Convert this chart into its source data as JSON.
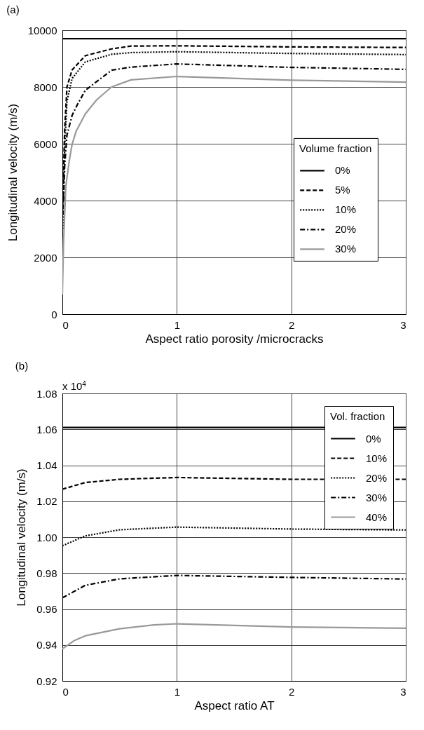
{
  "chart_data": [
    {
      "type": "line",
      "title": "(a)",
      "xlabel": "Aspect ratio porosity /microcracks",
      "ylabel": "Longitudinal velocity (m/s)",
      "legend_title": "Volume fraction",
      "legend": "right",
      "grid": true,
      "xlim": [
        0,
        3
      ],
      "xticks": [
        0,
        1,
        2,
        3
      ],
      "ylim": [
        0,
        10000
      ],
      "yticks": [
        0,
        2000,
        4000,
        6000,
        8000,
        10000
      ],
      "series": [
        {
          "name": "0%",
          "color": "#000000",
          "line_style": "solid",
          "x": [
            0,
            3
          ],
          "values": [
            9700,
            9700
          ]
        },
        {
          "name": "5%",
          "color": "#000000",
          "line_style": "dashed",
          "x": [
            0.005,
            0.01,
            0.02,
            0.04,
            0.085,
            0.2,
            0.43,
            0.6,
            1,
            2,
            3
          ],
          "values": [
            3500,
            5000,
            6500,
            8000,
            8600,
            9100,
            9340,
            9440,
            9450,
            9410,
            9390
          ]
        },
        {
          "name": "10%",
          "color": "#000000",
          "line_style": "dotted",
          "x": [
            0.005,
            0.01,
            0.02,
            0.04,
            0.085,
            0.2,
            0.43,
            0.6,
            1,
            2,
            3
          ],
          "values": [
            3000,
            4500,
            5800,
            7500,
            8300,
            8880,
            9150,
            9210,
            9240,
            9180,
            9140
          ]
        },
        {
          "name": "20%",
          "color": "#000000",
          "line_style": "dashdot",
          "x": [
            0.01,
            0.02,
            0.04,
            0.085,
            0.13,
            0.2,
            0.43,
            0.6,
            1,
            2,
            3
          ],
          "values": [
            4000,
            5200,
            6300,
            7000,
            7370,
            7880,
            8590,
            8700,
            8810,
            8690,
            8620
          ]
        },
        {
          "name": "30%",
          "color": "#999999",
          "line_style": "solid",
          "x": [
            0,
            0.01,
            0.03,
            0.06,
            0.085,
            0.12,
            0.2,
            0.3,
            0.43,
            0.6,
            1,
            2,
            3
          ],
          "values": [
            700,
            2500,
            4500,
            5400,
            5980,
            6440,
            7050,
            7550,
            8000,
            8250,
            8370,
            8240,
            8170
          ]
        }
      ]
    },
    {
      "type": "line",
      "title": "(b)",
      "xlabel": "Aspect ratio AT",
      "ylabel": "Longitudinal velocity (m/s)",
      "legend_title": "Vol. fraction",
      "legend": "top right",
      "grid": true,
      "annotations": [
        "x 10$^{4}$"
      ],
      "xlim": [
        0,
        3
      ],
      "xticks": [
        0,
        1,
        2,
        3
      ],
      "ylim": [
        0.92,
        1.08
      ],
      "yticks": [
        {
          "value": 0.92,
          "label": "0.92"
        },
        {
          "value": 0.94,
          "label": "0.94"
        },
        {
          "value": 0.96,
          "label": "0.96"
        },
        {
          "value": 0.98,
          "label": "0.98"
        },
        {
          "value": 1,
          "label": "1.00"
        },
        {
          "value": 1.02,
          "label": "1.02"
        },
        {
          "value": 1.04,
          "label": "1.04"
        },
        {
          "value": 1.06,
          "label": "1.06"
        },
        {
          "value": 1.08,
          "label": "1.08"
        }
      ],
      "series": [
        {
          "name": "0%",
          "color": "#000000",
          "line_style": "solid",
          "x": [
            0,
            3
          ],
          "values": [
            1.061,
            1.061
          ]
        },
        {
          "name": "10%",
          "color": "#000000",
          "line_style": "dashed",
          "x": [
            0,
            0.2,
            0.5,
            1,
            2,
            3
          ],
          "values": [
            1.0267,
            1.0304,
            1.0322,
            1.0332,
            1.0322,
            1.0322
          ]
        },
        {
          "name": "20%",
          "color": "#000000",
          "line_style": "dotted",
          "x": [
            0,
            0.2,
            0.5,
            1,
            2,
            3
          ],
          "values": [
            0.9952,
            1.0007,
            1.0041,
            1.0056,
            1.0045,
            1.004
          ]
        },
        {
          "name": "30%",
          "color": "#000000",
          "line_style": "dashdot",
          "x": [
            0,
            0.2,
            0.5,
            1,
            2,
            3
          ],
          "values": [
            0.9662,
            0.9732,
            0.9768,
            0.9787,
            0.9776,
            0.9767
          ]
        },
        {
          "name": "40%",
          "color": "#999999",
          "line_style": "solid",
          "x": [
            0,
            0.1,
            0.2,
            0.5,
            0.8,
            1,
            2,
            3
          ],
          "values": [
            0.9378,
            0.9423,
            0.9451,
            0.949,
            0.9512,
            0.9518,
            0.95,
            0.9493
          ]
        }
      ]
    }
  ]
}
